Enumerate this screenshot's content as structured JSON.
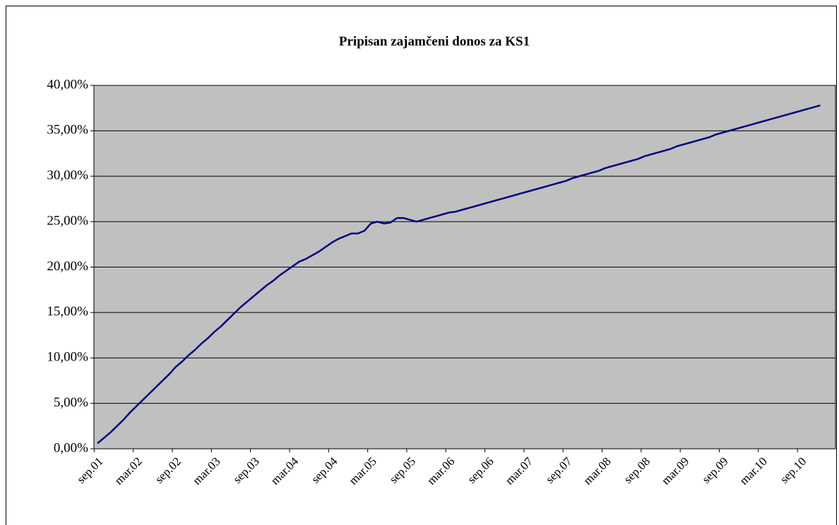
{
  "chart_data": {
    "type": "line",
    "title": "Pripisan zajamčeni donos za KS1",
    "categories": [
      "sep.01",
      null,
      null,
      null,
      null,
      null,
      "mar.02",
      null,
      null,
      null,
      null,
      null,
      "sep.02",
      null,
      null,
      null,
      null,
      null,
      "mar.03",
      null,
      null,
      null,
      null,
      null,
      "sep.03",
      null,
      null,
      null,
      null,
      null,
      "mar.04",
      null,
      null,
      null,
      null,
      null,
      "sep.04",
      null,
      null,
      null,
      null,
      null,
      "mar.05",
      null,
      null,
      null,
      null,
      null,
      "sep.05",
      null,
      null,
      null,
      null,
      null,
      "mar.06",
      null,
      null,
      null,
      null,
      null,
      "sep.06",
      null,
      null,
      null,
      null,
      null,
      "mar.07",
      null,
      null,
      null,
      null,
      null,
      "sep.07",
      null,
      null,
      null,
      null,
      null,
      "mar.08",
      null,
      null,
      null,
      null,
      null,
      "sep.08",
      null,
      null,
      null,
      null,
      null,
      "mar.09",
      null,
      null,
      null,
      null,
      null,
      "sep.09",
      null,
      null,
      null,
      null,
      null,
      "mar.10",
      null,
      null,
      null,
      null,
      null,
      "sep.10",
      null,
      null,
      null
    ],
    "values": [
      0.6,
      1.2,
      1.8,
      2.5,
      3.2,
      4.0,
      4.7,
      5.4,
      6.1,
      6.8,
      7.5,
      8.2,
      9.0,
      9.6,
      10.3,
      10.9,
      11.6,
      12.2,
      12.9,
      13.5,
      14.2,
      14.9,
      15.6,
      16.2,
      16.8,
      17.4,
      18.0,
      18.5,
      19.1,
      19.6,
      20.1,
      20.6,
      20.9,
      21.3,
      21.7,
      22.2,
      22.7,
      23.1,
      23.4,
      23.7,
      23.7,
      24.0,
      24.8,
      25.0,
      24.8,
      24.9,
      25.4,
      25.4,
      25.2,
      25.0,
      25.2,
      25.4,
      25.6,
      25.8,
      26.0,
      26.1,
      26.3,
      26.5,
      26.7,
      26.9,
      27.1,
      27.3,
      27.5,
      27.7,
      27.9,
      28.1,
      28.3,
      28.5,
      28.7,
      28.9,
      29.1,
      29.3,
      29.5,
      29.8,
      30.0,
      30.2,
      30.4,
      30.6,
      30.9,
      31.1,
      31.3,
      31.5,
      31.7,
      31.9,
      32.2,
      32.4,
      32.6,
      32.8,
      33.0,
      33.3,
      33.5,
      33.7,
      33.9,
      34.1,
      34.3,
      34.6,
      34.8,
      35.0,
      35.2,
      35.4,
      35.6,
      35.8,
      36.0,
      36.2,
      36.4,
      36.6,
      36.8,
      37.0,
      37.2,
      37.4,
      37.6,
      37.8
    ],
    "color": "#000080",
    "ylim": [
      0,
      40
    ],
    "yticks": [
      {
        "value": 0,
        "label": "0,00%"
      },
      {
        "value": 5,
        "label": "5,00%"
      },
      {
        "value": 10,
        "label": "10,00%"
      },
      {
        "value": 15,
        "label": "15,00%"
      },
      {
        "value": 20,
        "label": "20,00%"
      },
      {
        "value": 25,
        "label": "25,00%"
      },
      {
        "value": 30,
        "label": "30,00%"
      },
      {
        "value": 35,
        "label": "35,00%"
      },
      {
        "value": 40,
        "label": "40,00%"
      }
    ],
    "grid": true
  }
}
